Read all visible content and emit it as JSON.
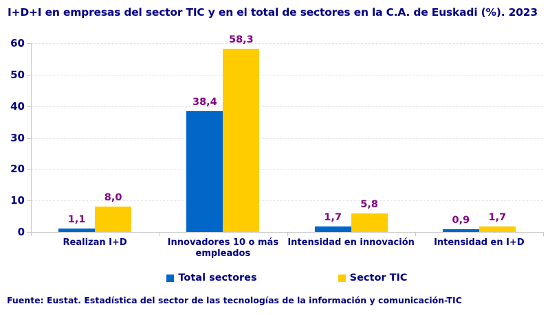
{
  "title": "I+D+I en empresas del sector TIC y en el total de sectores en la C.A. de Euskadi (%). 2023",
  "footer": "Fuente: Eustat. Estadística del sector de las tecnologías de la información y comunicación-TIC",
  "colors": {
    "text_navy": "#000082",
    "value_label_purple": "#800080",
    "series_blue": "#0066C8",
    "series_yellow": "#FFCC00",
    "gridline": "#DCDCDC",
    "axis": "#C8C8C8"
  },
  "chart_data": {
    "type": "bar",
    "title": "I+D+I en empresas del sector TIC y en el total de sectores en la C.A. de Euskadi (%). 2023",
    "categories": [
      "Realizan I+D",
      "Innovadores 10 o más empleados",
      "Intensidad en innovación",
      "Intensidad en I+D"
    ],
    "series": [
      {
        "name": "Total sectores",
        "color": "#0066C8",
        "values": [
          1.1,
          38.4,
          1.7,
          0.9
        ],
        "value_labels": [
          "1,1",
          "38,4",
          "1,7",
          "0,9"
        ]
      },
      {
        "name": "Sector TIC",
        "color": "#FFCC00",
        "values": [
          8.0,
          58.3,
          5.8,
          1.7
        ],
        "value_labels": [
          "8,0",
          "58,3",
          "5,8",
          "1,7"
        ]
      }
    ],
    "xlabel": "",
    "ylabel": "",
    "ylim": [
      0,
      60
    ],
    "yticks": [
      0,
      10,
      20,
      30,
      40,
      50,
      60
    ],
    "grid": true,
    "gridstyle": "dotted",
    "legend_position": "bottom",
    "value_labels_shown": true,
    "source": "Fuente: Eustat. Estadística del sector de las tecnologías de la información y comunicación-TIC"
  }
}
